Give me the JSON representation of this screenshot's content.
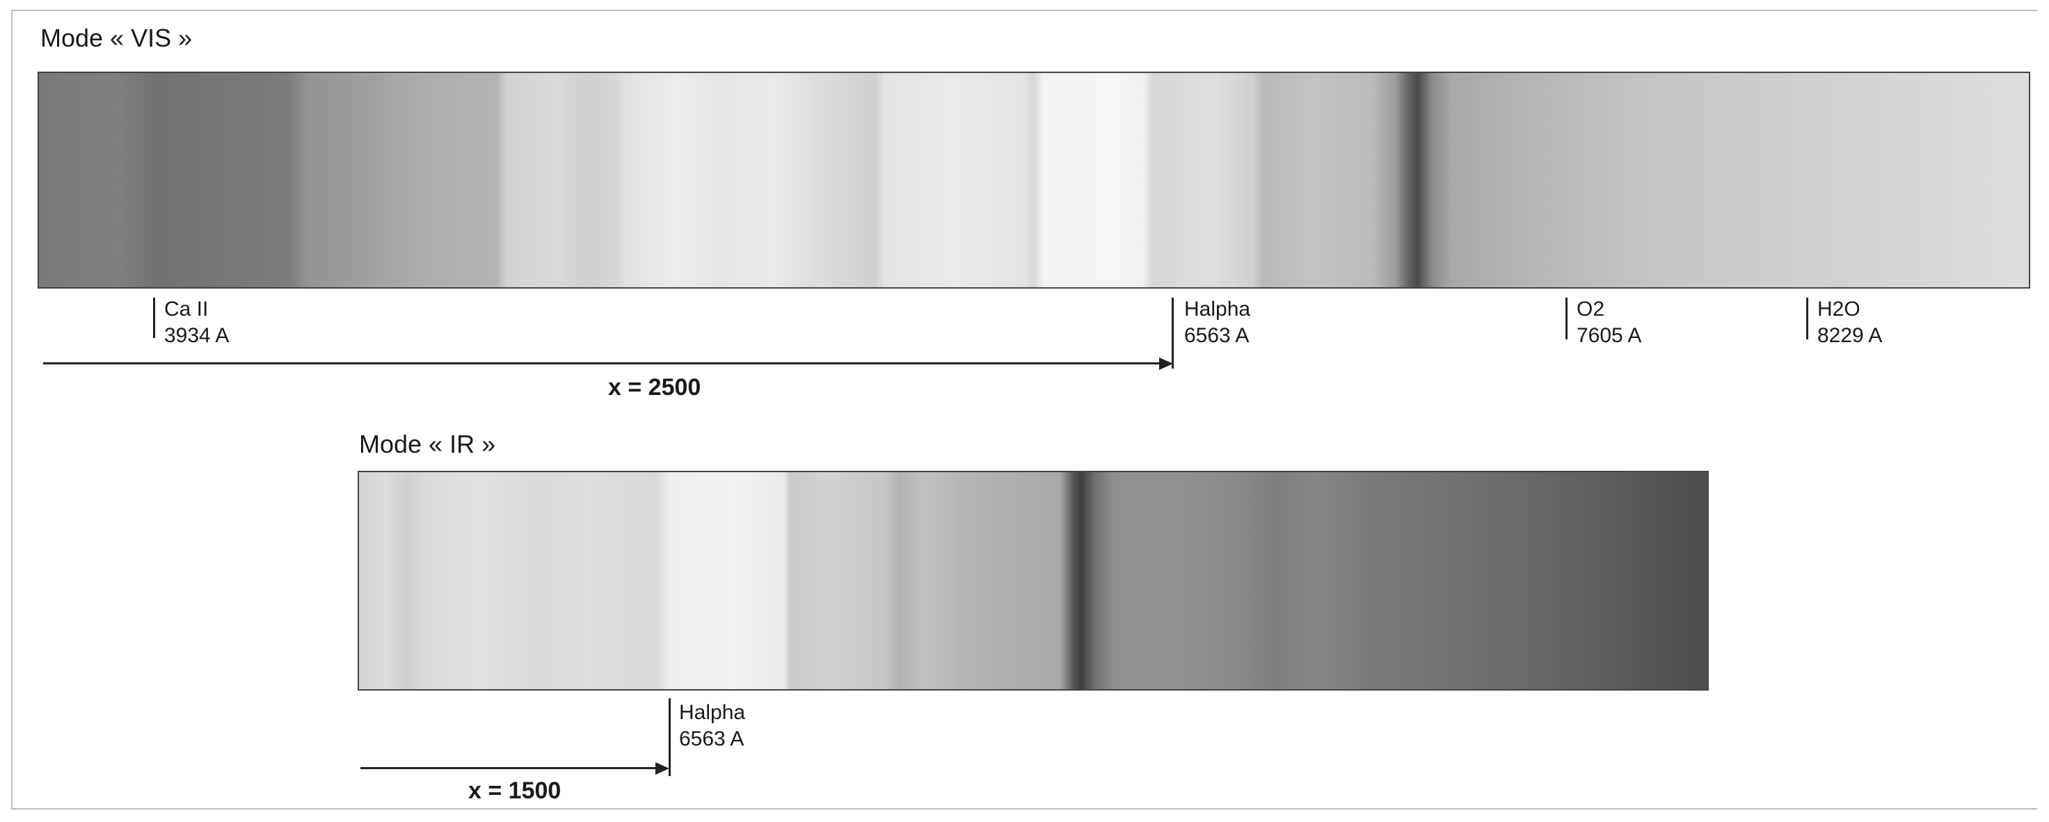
{
  "vis": {
    "title": "Mode « VIS »",
    "lines": [
      {
        "name": "Ca II",
        "wavelength": "3934 A"
      },
      {
        "name": "Halpha",
        "wavelength": "6563 A"
      },
      {
        "name": "O2",
        "wavelength": "7605 A"
      },
      {
        "name": "H2O",
        "wavelength": "8229 A"
      }
    ],
    "distance_label": "x = 2500"
  },
  "ir": {
    "title": "Mode « IR »",
    "lines": [
      {
        "name": "Halpha",
        "wavelength": "6563 A"
      }
    ],
    "distance_label": "x = 1500"
  }
}
